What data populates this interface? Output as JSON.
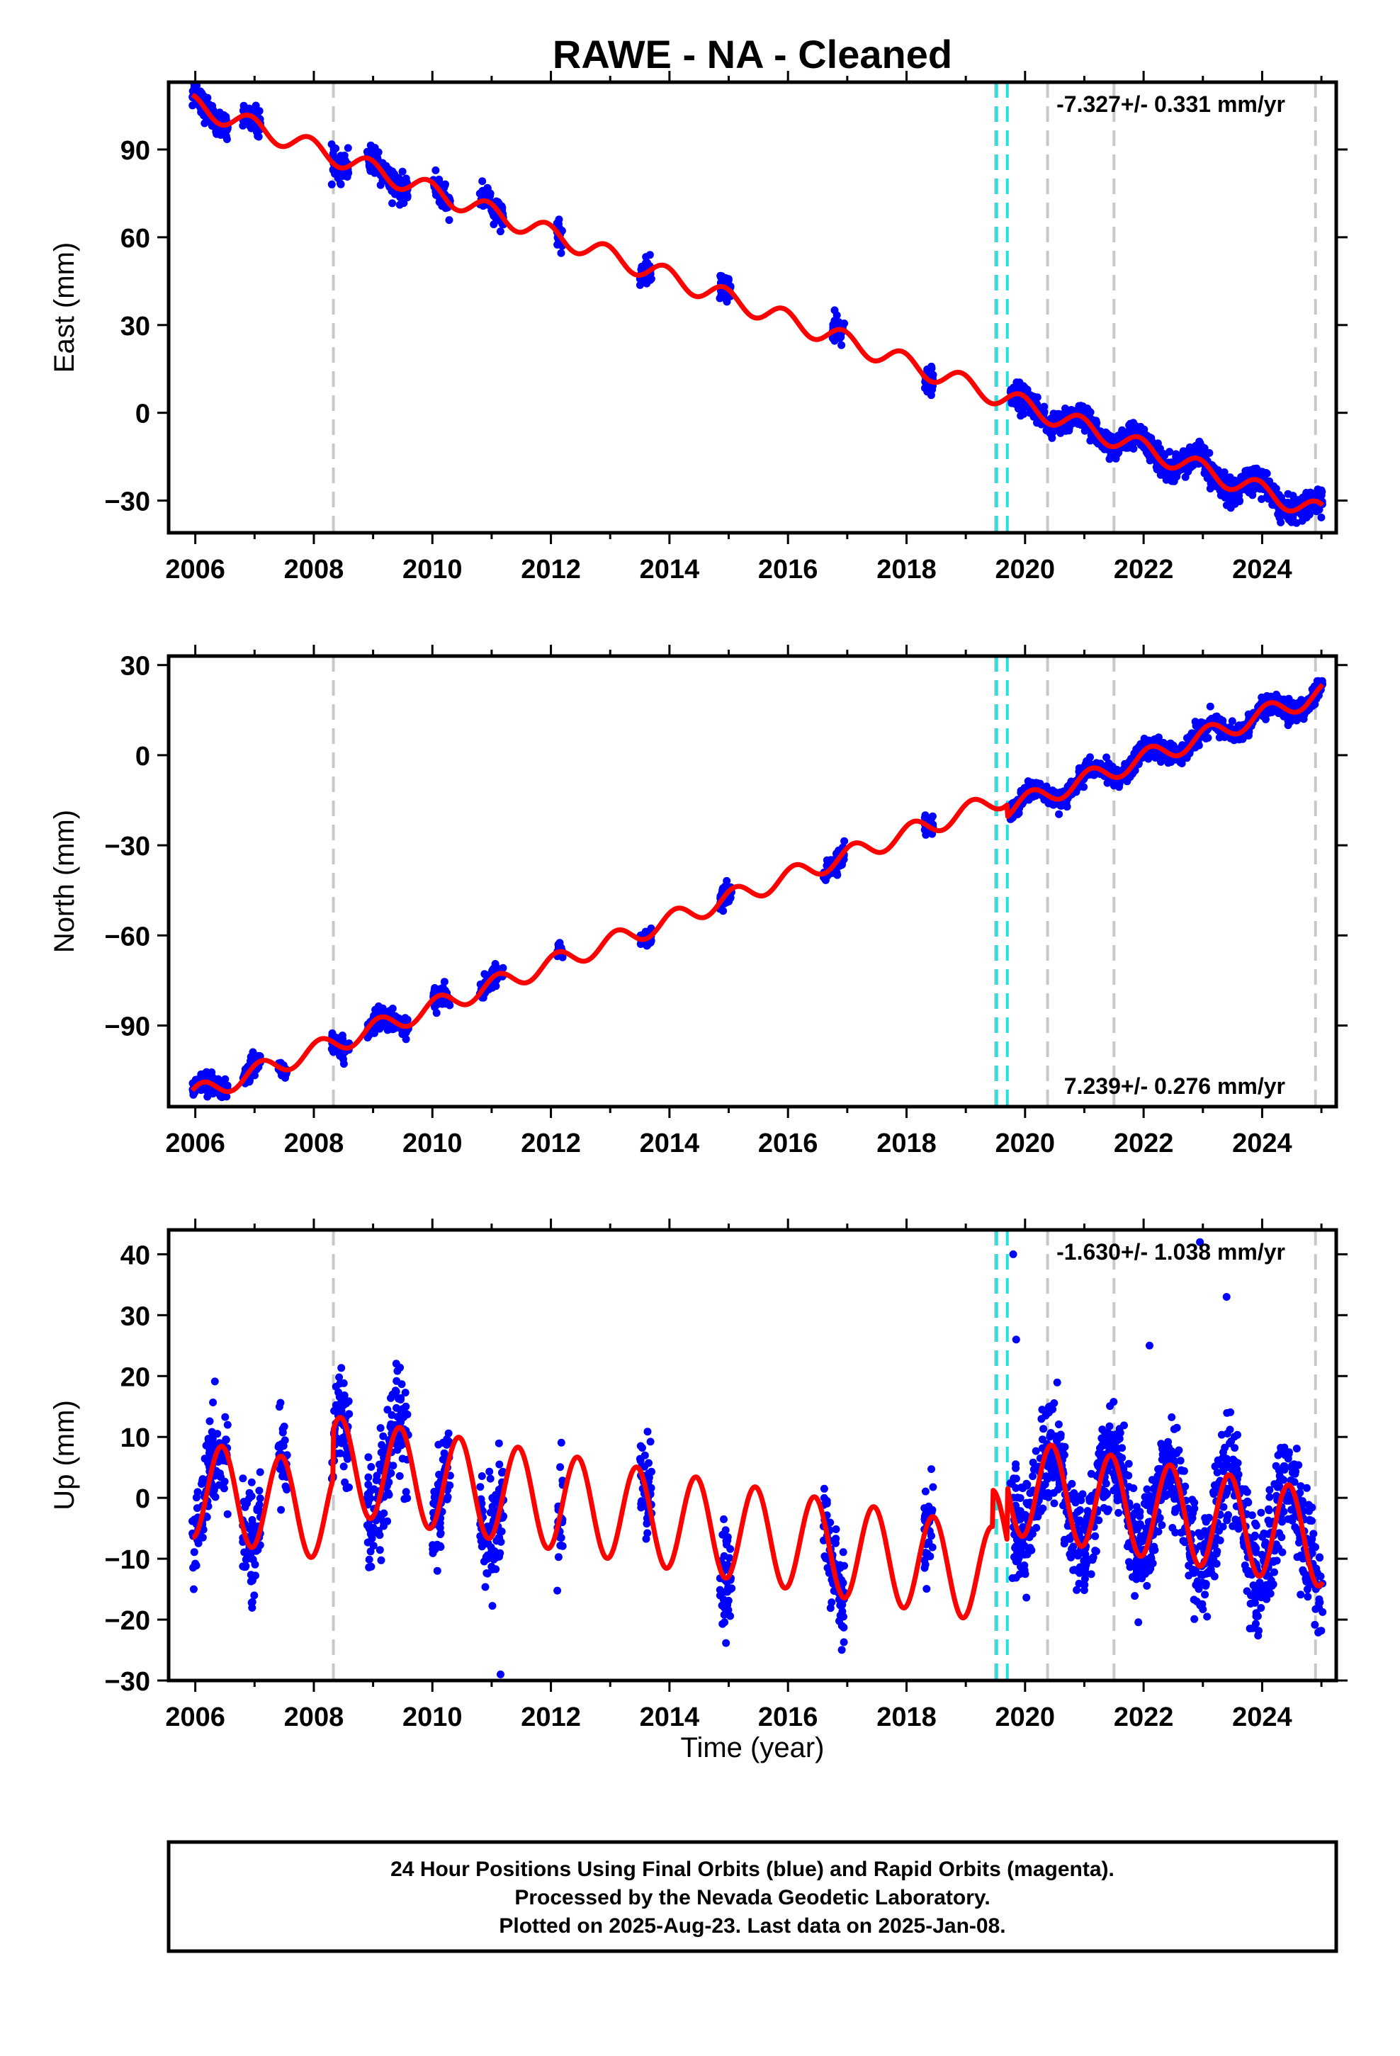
{
  "title": "RAWE  - NA - Cleaned",
  "colors": {
    "final_orbits": "#0000ff",
    "model_fit": "#ff0000",
    "equipment_change": "#c8c8c8",
    "earthquake_event": "#20e0e0",
    "frame": "#000000"
  },
  "footer": {
    "line1": "24 Hour Positions Using Final Orbits (blue) and Rapid Orbits (magenta).",
    "line2": "Processed by the Nevada Geodetic Laboratory.",
    "line3": "Plotted on 2025-Aug-23. Last data on 2025-Jan-08."
  },
  "chart_data": [
    {
      "type": "scatter",
      "component": "East",
      "ylabel": "East (mm)",
      "xlabel": "",
      "xlim": [
        2005.55,
        2025.25
      ],
      "ylim": [
        -41,
        113
      ],
      "xticks": [
        2006,
        2008,
        2010,
        2012,
        2014,
        2016,
        2018,
        2020,
        2022,
        2024
      ],
      "yticks": [
        90,
        60,
        30,
        0,
        -30
      ],
      "ytick_labels": [
        "90",
        "60",
        "30",
        "0",
        "−30"
      ],
      "rate_label": "-7.327+/- 0.331 mm/yr",
      "rate_position": "top-right",
      "model": {
        "offset": 105,
        "rate": -7.327,
        "amp_cos": 3.0,
        "amp_sin": -1.5,
        "steps": []
      },
      "data_windows": [
        [
          2005.95,
          2006.55
        ],
        [
          2006.8,
          2007.1
        ],
        [
          2008.3,
          2008.6
        ],
        [
          2008.9,
          2009.6
        ],
        [
          2010.0,
          2010.3
        ],
        [
          2010.8,
          2011.2
        ],
        [
          2012.1,
          2012.2
        ],
        [
          2013.5,
          2013.7
        ],
        [
          2014.85,
          2015.05
        ],
        [
          2016.75,
          2016.95
        ],
        [
          2018.3,
          2018.45
        ],
        [
          2019.75,
          2025.02
        ]
      ],
      "scatter_sigma": 2.2,
      "equipment_changes": [
        2008.33,
        2019.5,
        2020.38,
        2021.5,
        2024.9
      ],
      "earthquake_events": [
        2019.52,
        2019.7
      ]
    },
    {
      "type": "scatter",
      "component": "North",
      "ylabel": "North (mm)",
      "xlabel": "",
      "xlim": [
        2005.55,
        2025.25
      ],
      "ylim": [
        -117,
        33
      ],
      "xticks": [
        2006,
        2008,
        2010,
        2012,
        2014,
        2016,
        2018,
        2020,
        2022,
        2024
      ],
      "yticks": [
        30,
        0,
        -30,
        -60,
        -90
      ],
      "ytick_labels": [
        "30",
        "0",
        "−30",
        "−60",
        "−90"
      ],
      "rate_label": "7.239+/- 0.276 mm/yr",
      "rate_position": "bottom-right",
      "model": {
        "offset": -113,
        "rate": 7.239,
        "amp_cos": 2.5,
        "amp_sin": 2.0,
        "steps": [
          [
            2019.7,
            -4
          ]
        ]
      },
      "data_windows": [
        [
          2005.95,
          2006.55
        ],
        [
          2006.8,
          2007.1
        ],
        [
          2007.4,
          2007.55
        ],
        [
          2008.3,
          2008.6
        ],
        [
          2008.9,
          2009.6
        ],
        [
          2010.0,
          2010.3
        ],
        [
          2010.8,
          2011.2
        ],
        [
          2012.1,
          2012.2
        ],
        [
          2013.5,
          2013.7
        ],
        [
          2014.85,
          2015.05
        ],
        [
          2016.6,
          2016.95
        ],
        [
          2018.3,
          2018.45
        ],
        [
          2019.75,
          2025.02
        ]
      ],
      "scatter_sigma": 1.6,
      "equipment_changes": [
        2008.33,
        2019.5,
        2020.38,
        2021.5,
        2024.9
      ],
      "earthquake_events": [
        2019.52,
        2019.7
      ]
    },
    {
      "type": "scatter",
      "component": "Up",
      "ylabel": "Up (mm)",
      "xlabel": "Time (year)",
      "xlim": [
        2005.55,
        2025.25
      ],
      "ylim": [
        -30,
        44
      ],
      "xticks": [
        2006,
        2008,
        2010,
        2012,
        2014,
        2016,
        2018,
        2020,
        2022,
        2024
      ],
      "yticks": [
        40,
        30,
        20,
        10,
        0,
        -10,
        -20,
        -30
      ],
      "ytick_labels": [
        "40",
        "30",
        "20",
        "10",
        "0",
        "−10",
        "−20",
        "−30"
      ],
      "rate_label": "-1.630+/- 1.038 mm/yr",
      "rate_position": "top-right",
      "model": {
        "offset": 1.3,
        "rate": -1.63,
        "amp_cos": -7.5,
        "amp_sin": 2.5,
        "steps": [
          [
            2008.33,
            8
          ],
          [
            2019.45,
            6
          ],
          [
            2019.7,
            9
          ]
        ]
      },
      "data_windows": [
        [
          2005.95,
          2006.55
        ],
        [
          2006.8,
          2007.1
        ],
        [
          2007.4,
          2007.55
        ],
        [
          2008.3,
          2008.6
        ],
        [
          2008.9,
          2009.6
        ],
        [
          2010.0,
          2010.3
        ],
        [
          2010.8,
          2011.2
        ],
        [
          2012.1,
          2012.2
        ],
        [
          2013.5,
          2013.7
        ],
        [
          2014.85,
          2015.05
        ],
        [
          2016.6,
          2016.95
        ],
        [
          2018.3,
          2018.45
        ],
        [
          2019.75,
          2025.02
        ]
      ],
      "scatter_sigma": 4.2,
      "outliers": [
        [
          2019.8,
          40
        ],
        [
          2022.95,
          42
        ],
        [
          2023.4,
          33
        ],
        [
          2011.15,
          -29
        ],
        [
          2019.85,
          26
        ],
        [
          2022.1,
          25
        ]
      ],
      "equipment_changes": [
        2008.33,
        2019.5,
        2020.38,
        2021.5,
        2024.9
      ],
      "earthquake_events": [
        2019.52,
        2019.7
      ]
    }
  ]
}
